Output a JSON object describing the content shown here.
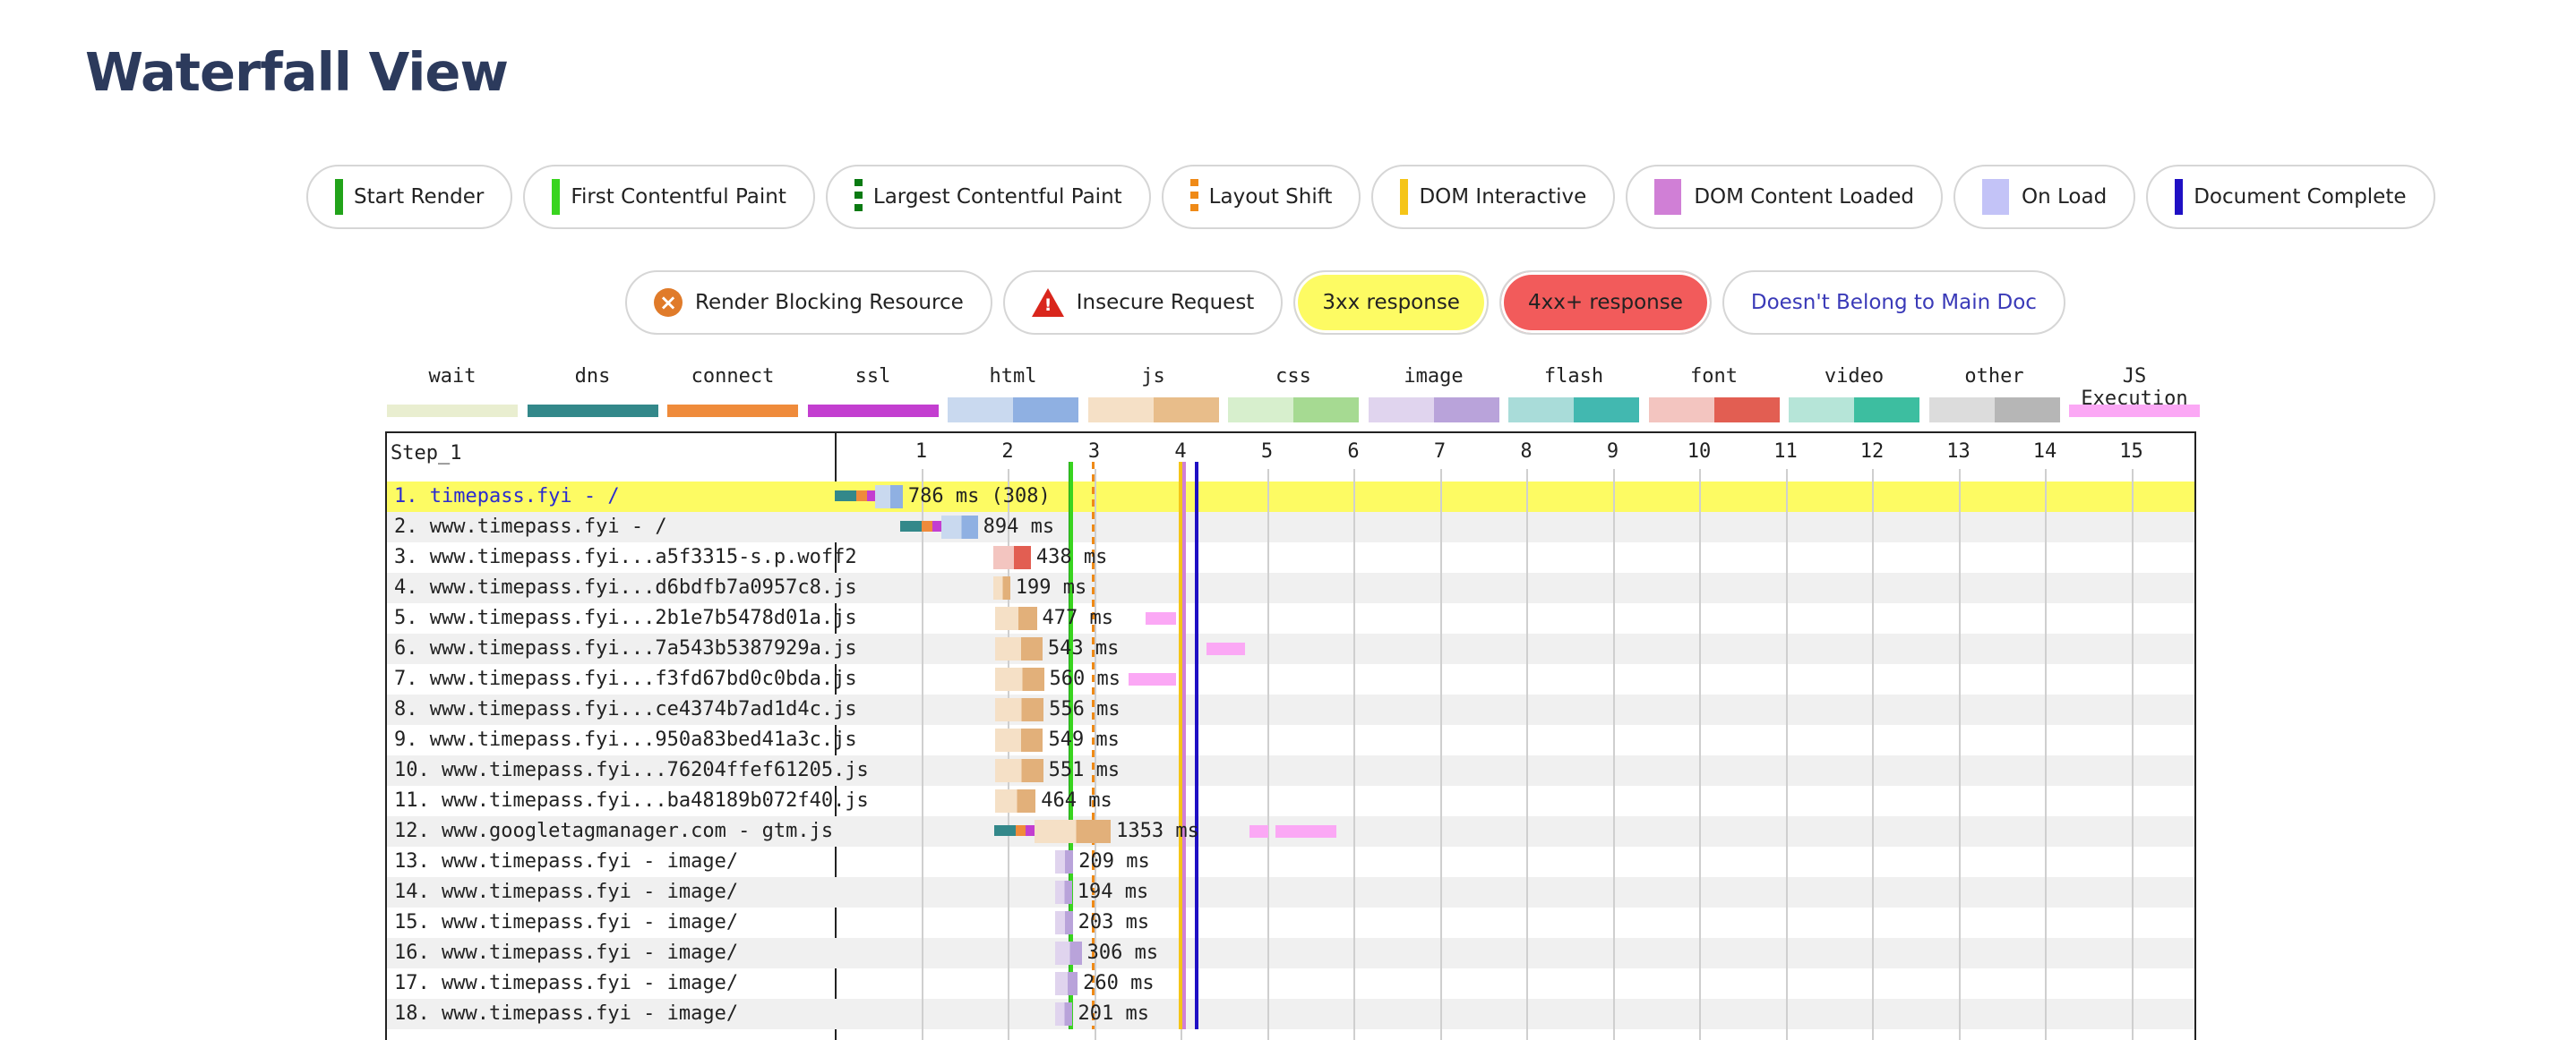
{
  "page": {
    "title": "Waterfall View"
  },
  "markers": [
    {
      "label": "Start Render",
      "color": "#22a31a",
      "style": "solid"
    },
    {
      "label": "First Contentful Paint",
      "color": "#39d41f",
      "style": "solid"
    },
    {
      "label": "Largest Contentful Paint",
      "color": "#0a7a12",
      "style": "dashed"
    },
    {
      "label": "Layout Shift",
      "color": "#ef8a17",
      "style": "dashed"
    },
    {
      "label": "DOM Interactive",
      "color": "#f5c518",
      "style": "solid"
    },
    {
      "label": "DOM Content Loaded",
      "color": "#d07fd6",
      "style": "block"
    },
    {
      "label": "On Load",
      "color": "#c3c3f7",
      "style": "block"
    },
    {
      "label": "Document Complete",
      "color": "#1f10c4",
      "style": "solid"
    }
  ],
  "indicators": [
    {
      "label": "Render Blocking Resource",
      "icon": "render-blocking-icon"
    },
    {
      "label": "Insecure Request",
      "icon": "warning-triangle-icon"
    },
    {
      "label": "3xx response",
      "bg": "#fdfb63"
    },
    {
      "label": "4xx+ response",
      "bg": "#f25b5b"
    },
    {
      "label": "Doesn't Belong to Main Doc",
      "color": "#3a3ab8"
    }
  ],
  "request_legend": [
    {
      "label": "wait",
      "c1": "#e9eed0",
      "c2": "#e9eed0"
    },
    {
      "label": "dns",
      "c1": "#33888a",
      "c2": "#33888a"
    },
    {
      "label": "connect",
      "c1": "#ef8b3b",
      "c2": "#ef8b3b"
    },
    {
      "label": "ssl",
      "c1": "#c33ed0",
      "c2": "#c33ed0"
    },
    {
      "label": "html",
      "c1": "#c9d9ef",
      "c2": "#8fb0e2"
    },
    {
      "label": "js",
      "c1": "#f5e0c6",
      "c2": "#e8bd8a"
    },
    {
      "label": "css",
      "c1": "#d7efcd",
      "c2": "#a6da92"
    },
    {
      "label": "image",
      "c1": "#e0d4ee",
      "c2": "#b9a3da"
    },
    {
      "label": "flash",
      "c1": "#a9dcd9",
      "c2": "#42b8b0"
    },
    {
      "label": "font",
      "c1": "#f3c5c0",
      "c2": "#e25e52"
    },
    {
      "label": "video",
      "c1": "#b6e5d8",
      "c2": "#3dbea0"
    },
    {
      "label": "other",
      "c1": "#dcdcdc",
      "c2": "#b6b6b6"
    },
    {
      "label": "JS Execution",
      "c1": "#fba8f5",
      "c2": "#fba8f5"
    }
  ],
  "waterfall": {
    "step": "Step_1",
    "ticks": [
      "1",
      "2",
      "3",
      "4",
      "5",
      "6",
      "7",
      "8",
      "9",
      "10",
      "11",
      "12",
      "13",
      "14",
      "15"
    ],
    "rows": [
      {
        "label": "1. timepass.fyi - /",
        "duration": "786 ms (308)",
        "start": 0.0,
        "type": "html",
        "dns": true,
        "highlight": true
      },
      {
        "label": "2. www.timepass.fyi - /",
        "duration": "894 ms",
        "start": 0.76,
        "type": "html",
        "dns": true
      },
      {
        "label": "3. www.timepass.fyi...a5f3315-s.p.woff2",
        "duration": "438 ms",
        "start": 1.83,
        "type": "font"
      },
      {
        "label": "4. www.timepass.fyi...d6bdfb7a0957c8.js",
        "duration": "199 ms",
        "start": 1.83,
        "type": "js"
      },
      {
        "label": "5. www.timepass.fyi...2b1e7b5478d01a.js",
        "duration": "477 ms",
        "start": 1.86,
        "type": "js"
      },
      {
        "label": "6. www.timepass.fyi...7a543b5387929a.js",
        "duration": "543 ms",
        "start": 1.86,
        "type": "js"
      },
      {
        "label": "7. www.timepass.fyi...f3fd67bd0c0bda.js",
        "duration": "560 ms",
        "start": 1.86,
        "type": "js"
      },
      {
        "label": "8. www.timepass.fyi...ce4374b7ad1d4c.js",
        "duration": "556 ms",
        "start": 1.86,
        "type": "js"
      },
      {
        "label": "9. www.timepass.fyi...950a83bed41a3c.js",
        "duration": "549 ms",
        "start": 1.86,
        "type": "js"
      },
      {
        "label": "10. www.timepass.fyi...76204ffef61205.js",
        "duration": "551 ms",
        "start": 1.86,
        "type": "js"
      },
      {
        "label": "11. www.timepass.fyi...ba48189b072f40.js",
        "duration": "464 ms",
        "start": 1.86,
        "type": "js"
      },
      {
        "label": "12. www.googletagmanager.com - gtm.js",
        "duration": "1353 ms",
        "start": 1.84,
        "type": "js",
        "dns": true
      },
      {
        "label": "13. www.timepass.fyi - image/",
        "duration": "209 ms",
        "start": 2.55,
        "type": "image"
      },
      {
        "label": "14. www.timepass.fyi - image/",
        "duration": "194 ms",
        "start": 2.55,
        "type": "image"
      },
      {
        "label": "15. www.timepass.fyi - image/",
        "duration": "203 ms",
        "start": 2.55,
        "type": "image"
      },
      {
        "label": "16. www.timepass.fyi - image/",
        "duration": "306 ms",
        "start": 2.55,
        "type": "image"
      },
      {
        "label": "17. www.timepass.fyi - image/",
        "duration": "260 ms",
        "start": 2.55,
        "type": "image"
      },
      {
        "label": "18. www.timepass.fyi - image/",
        "duration": "201 ms",
        "start": 2.55,
        "type": "image"
      }
    ],
    "vlines": [
      {
        "name": "start-render-line",
        "at": 2.7,
        "color": "#22a31a"
      },
      {
        "name": "first-contentful-paint-line",
        "at": 2.72,
        "color": "#39d41f"
      },
      {
        "name": "layout-shift-line",
        "at": 2.97,
        "color": "#ef8a17"
      },
      {
        "name": "dom-interactive-line",
        "at": 3.98,
        "color": "#f5c518"
      },
      {
        "name": "dom-content-loaded-line",
        "at": 4.02,
        "color": "#d07fd6"
      },
      {
        "name": "document-complete-line",
        "at": 4.17,
        "color": "#1f10c4"
      }
    ]
  }
}
